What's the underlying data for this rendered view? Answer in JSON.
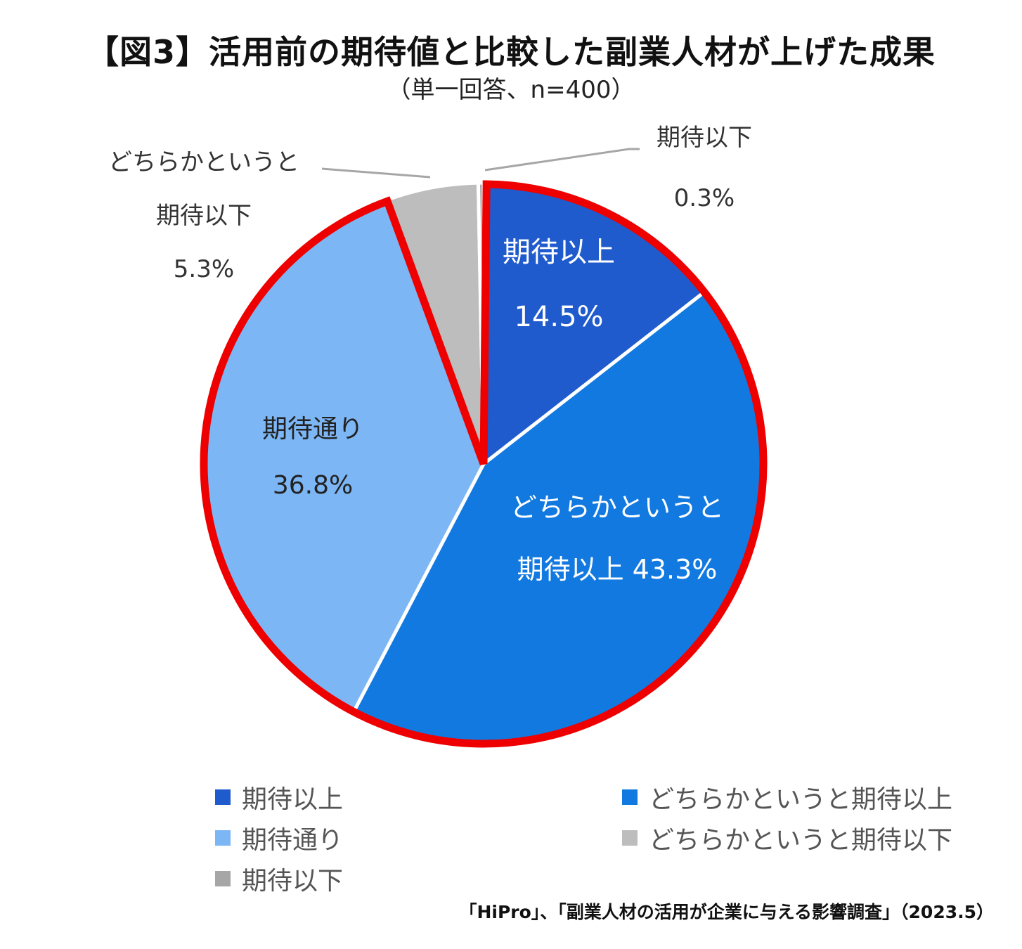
{
  "title": "【図3】活用前の期待値と比較した副業人材が上げた成果",
  "subtitle": "（単一回答、n=400）",
  "chart_data": {
    "type": "pie",
    "title": "【図3】活用前の期待値と比較した副業人材が上げた成果",
    "subtitle": "（単一回答、n=400）",
    "start": "12 o'clock, clockwise",
    "highlight": "red outline around 期待以上 + どちらかというと期待以上 + 期待通り",
    "slices": [
      {
        "name": "期待以上",
        "value": 14.5,
        "color": "#1f5bcc",
        "label_lines": [
          "期待以上",
          "14.5%"
        ],
        "label_color": "#ffffff"
      },
      {
        "name": "どちらかというと期待以上",
        "value": 43.3,
        "color": "#1279e0",
        "label_lines": [
          "どちらかというと",
          "期待以上 43.3%"
        ],
        "label_color": "#ffffff"
      },
      {
        "name": "期待通り",
        "value": 36.8,
        "color": "#7cb6f5",
        "label_lines": [
          "期待通り",
          "36.8%"
        ],
        "label_color": "#222222"
      },
      {
        "name": "どちらかというと期待以下",
        "value": 5.3,
        "color": "#bdbdbd",
        "label_lines": [
          "どちらかというと",
          "期待以下",
          "5.3%"
        ],
        "label_color": "#333333"
      },
      {
        "name": "期待以下",
        "value": 0.3,
        "color": "#a6a6a6",
        "label_lines": [
          "期待以下",
          "0.3%"
        ],
        "label_color": "#333333"
      }
    ],
    "legend": [
      {
        "label": "期待以上",
        "color": "#1f5bcc"
      },
      {
        "label": "どちらかというと期待以上",
        "color": "#1279e0"
      },
      {
        "label": "期待通り",
        "color": "#7cb6f5"
      },
      {
        "label": "どちらかというと期待以下",
        "color": "#bdbdbd"
      },
      {
        "label": "期待以下",
        "color": "#a6a6a6"
      }
    ]
  },
  "source": "「HiPro」、「副業人材の活用が企業に与える影響調査」（2023.5）"
}
